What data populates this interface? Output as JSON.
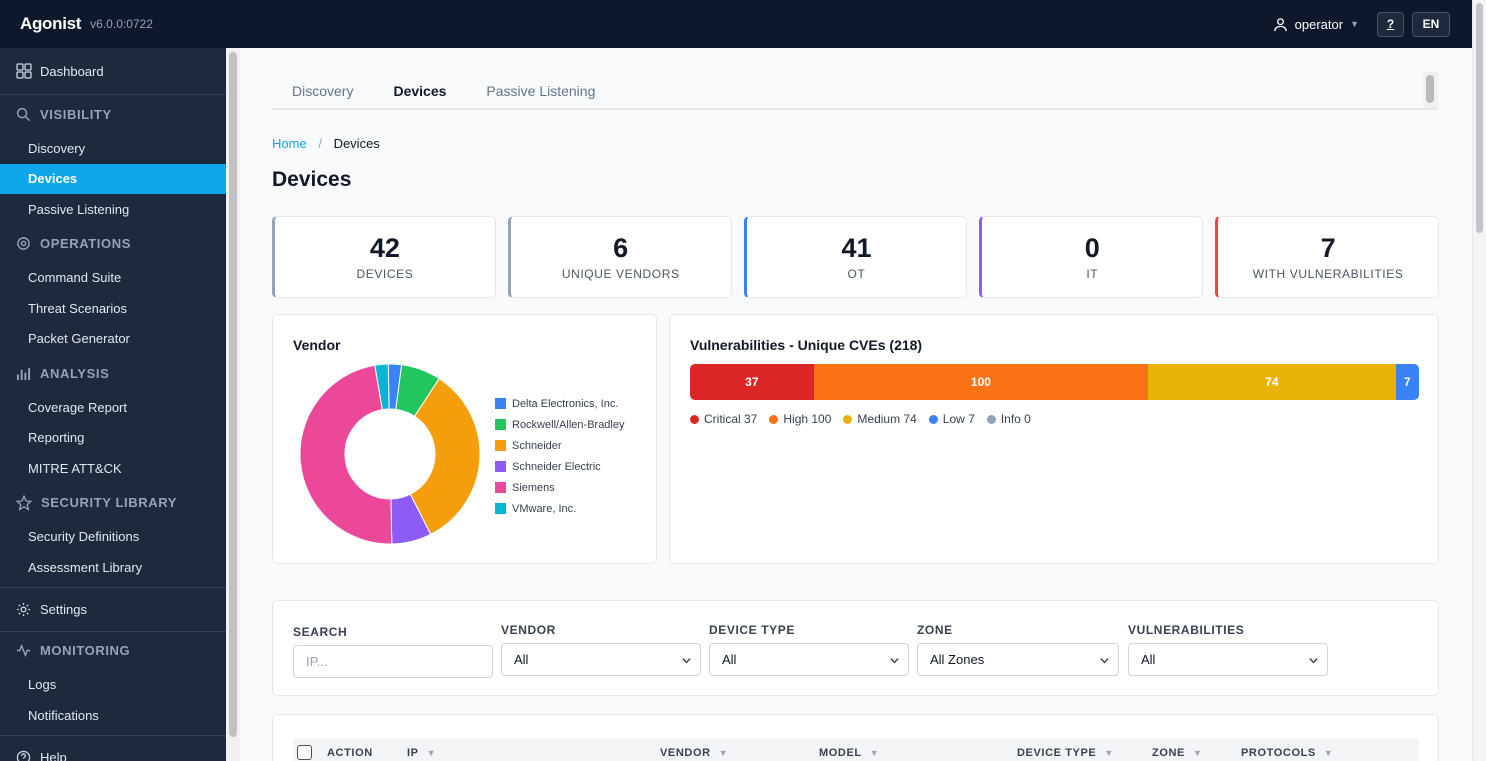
{
  "app": {
    "brand": "Agonist",
    "version": "v6.0.0:0722"
  },
  "topbar": {
    "user": "operator",
    "help_label": "?",
    "lang_label": "EN"
  },
  "sidebar": {
    "dashboard": "Dashboard",
    "sections": [
      {
        "title": "VISIBILITY",
        "icon": "search-icon",
        "items": [
          "Discovery",
          "Devices",
          "Passive Listening"
        ]
      },
      {
        "title": "OPERATIONS",
        "icon": "gear-icon",
        "items": [
          "Command Suite",
          "Threat Scenarios",
          "Packet Generator"
        ]
      },
      {
        "title": "ANALYSIS",
        "icon": "bar-chart-icon",
        "items": [
          "Coverage Report",
          "Reporting",
          "MITRE ATT&CK"
        ]
      },
      {
        "title": "SECURITY LIBRARY",
        "icon": "star-icon",
        "items": [
          "Security Definitions",
          "Assessment Library"
        ]
      }
    ],
    "settings": "Settings",
    "monitoring": {
      "title": "MONITORING",
      "icon": "activity-icon",
      "items": [
        "Logs",
        "Notifications"
      ]
    },
    "help": "Help",
    "active_item": "Devices"
  },
  "tabs": [
    "Discovery",
    "Devices",
    "Passive Listening"
  ],
  "breadcrumb": {
    "home": "Home",
    "sep": "/",
    "current": "Devices"
  },
  "page_title": "Devices",
  "stats": [
    {
      "value": "42",
      "label": "DEVICES",
      "color": "#94a3b8"
    },
    {
      "value": "6",
      "label": "UNIQUE VENDORS",
      "color": "#94a3b8"
    },
    {
      "value": "41",
      "label": "OT",
      "color": "#3b82f6"
    },
    {
      "value": "0",
      "label": "IT",
      "color": "#8b5cf6"
    },
    {
      "value": "7",
      "label": "WITH VULNERABILITIES",
      "color": "#ef4444"
    }
  ],
  "vendor_panel": {
    "title": "Vendor"
  },
  "vuln_panel": {
    "title": "Vulnerabilities - Unique CVEs (218)"
  },
  "chart_data": [
    {
      "type": "pie",
      "title": "Vendor",
      "categories": [
        "Delta Electronics, Inc.",
        "Rockwell/Allen-Bradley",
        "Schneider",
        "Schneider Electric",
        "Siemens",
        "VMware, Inc."
      ],
      "values": [
        1,
        3,
        14,
        3,
        20,
        1
      ],
      "colors": [
        "#3b82f6",
        "#22c55e",
        "#f59e0b",
        "#8b5cf6",
        "#ec4899",
        "#06b6d4"
      ],
      "donut": true
    },
    {
      "type": "bar",
      "stacked": true,
      "orientation": "horizontal",
      "title": "Vulnerabilities - Unique CVEs (218)",
      "series": [
        {
          "name": "Critical",
          "value": 37,
          "color": "#dc2626"
        },
        {
          "name": "High",
          "value": 100,
          "color": "#f97316"
        },
        {
          "name": "Medium",
          "value": 74,
          "color": "#eab308"
        },
        {
          "name": "Low",
          "value": 7,
          "color": "#3b82f6"
        },
        {
          "name": "Info",
          "value": 0,
          "color": "#94a3b8"
        }
      ],
      "legend_labels": [
        "Critical 37",
        "High 100",
        "Medium 74",
        "Low 7",
        "Info 0"
      ]
    }
  ],
  "filters": {
    "search": {
      "label": "SEARCH",
      "placeholder": "IP..."
    },
    "vendor": {
      "label": "VENDOR",
      "value": "All"
    },
    "device_type": {
      "label": "DEVICE TYPE",
      "value": "All"
    },
    "zone": {
      "label": "ZONE",
      "value": "All Zones"
    },
    "vulnerabilities": {
      "label": "VULNERABILITIES",
      "value": "All"
    }
  },
  "table": {
    "columns": [
      "ACTION",
      "IP",
      "VENDOR",
      "MODEL",
      "DEVICE TYPE",
      "ZONE",
      "PROTOCOLS"
    ]
  }
}
